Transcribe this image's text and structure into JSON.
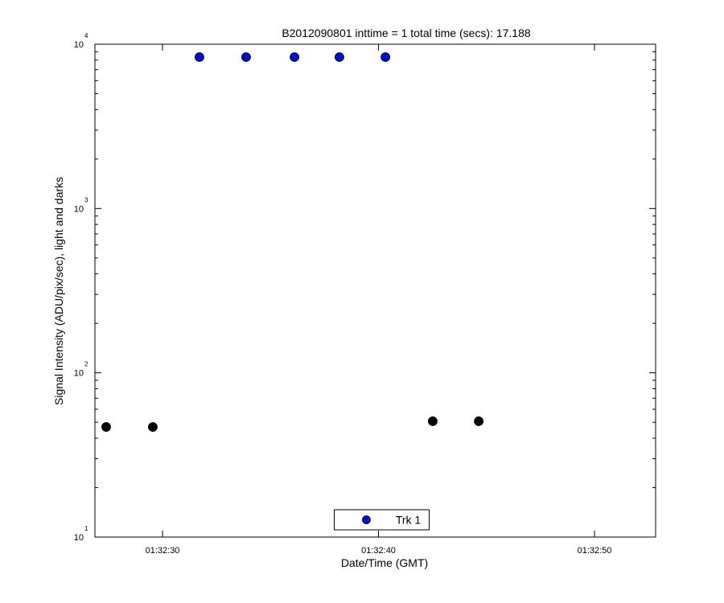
{
  "chart_data": {
    "type": "scatter",
    "title": "B2012090801 inttime = 1 total time (secs): 17.188",
    "x_label": "Date/Time (GMT)",
    "y_label": "Signal Intensity (ADU/pix/sec), light and darks",
    "log_y": true,
    "xlim": [
      5546.87,
      5572.83
    ],
    "xticks": [
      {
        "value": 5550,
        "label": "01:32:30"
      },
      {
        "value": 5560,
        "label": "01:32:40"
      },
      {
        "value": 5570,
        "label": "01:32:50"
      }
    ],
    "ylim": [
      10,
      10000
    ],
    "yticks": [
      {
        "value": 10,
        "label": "10",
        "exponent": "1"
      },
      {
        "value": 100,
        "label": "10",
        "exponent": "2"
      },
      {
        "value": 1000,
        "label": "10",
        "exponent": "3"
      },
      {
        "value": 10000,
        "label": "10",
        "exponent": "4"
      }
    ],
    "legend": "bottom",
    "series": [
      {
        "name": "Trk 1",
        "color": "#0010c8",
        "x": [
          5551.71,
          5553.87,
          5556.11,
          5558.19,
          5560.32
        ],
        "values": [
          8350,
          8350,
          8350,
          8350,
          8350
        ]
      },
      {
        "color": "#000000",
        "x": [
          5547.39,
          5549.55,
          5562.51,
          5564.64
        ],
        "values": [
          46.8,
          46.8,
          50.7,
          50.7
        ]
      }
    ]
  }
}
